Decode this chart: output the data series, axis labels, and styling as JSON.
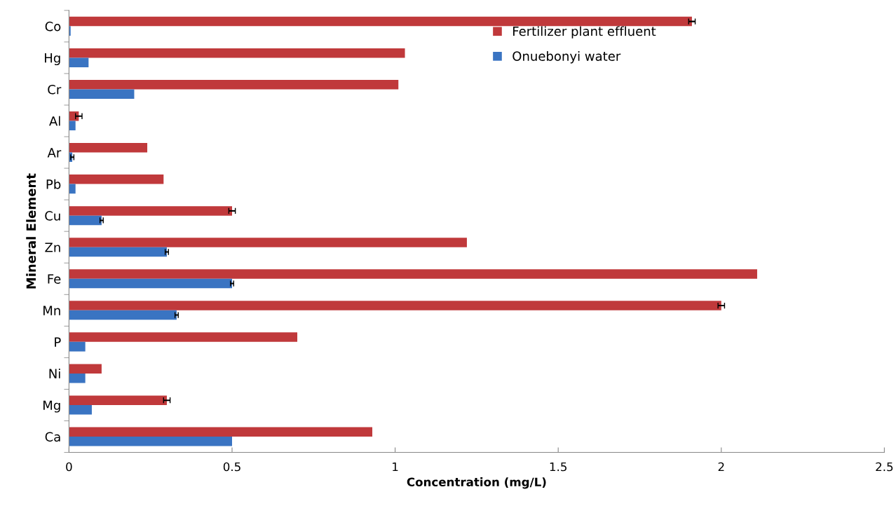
{
  "chart_data": {
    "type": "bar",
    "orientation": "horizontal",
    "xlabel": "Concentration (mg/L)",
    "ylabel": "Mineral Element",
    "categories": [
      "Co",
      "Hg",
      "Cr",
      "Al",
      "Ar",
      "Pb",
      "Cu",
      "Zn",
      "Fe",
      "Mn",
      "P",
      "Ni",
      "Mg",
      "Ca"
    ],
    "series": [
      {
        "name": "Fertilizer plant effluent",
        "color": "#c0393b",
        "values": [
          1.91,
          1.03,
          1.01,
          0.03,
          0.24,
          0.29,
          0.5,
          1.22,
          2.11,
          2.0,
          0.7,
          0.1,
          0.3,
          0.93
        ],
        "errors": [
          0.01,
          null,
          null,
          0.01,
          null,
          null,
          0.01,
          null,
          null,
          0.01,
          null,
          null,
          0.01,
          null
        ]
      },
      {
        "name": "Onuebonyi water",
        "color": "#3a74c2",
        "values": [
          0.005,
          0.06,
          0.2,
          0.02,
          0.01,
          0.02,
          0.1,
          0.3,
          0.5,
          0.33,
          0.05,
          0.05,
          0.07,
          0.5
        ],
        "errors": [
          null,
          null,
          null,
          null,
          0.005,
          null,
          0.005,
          0.005,
          0.005,
          0.005,
          null,
          null,
          null,
          null
        ]
      }
    ],
    "xlim": [
      0,
      2.5
    ],
    "xticks": [
      0,
      0.5,
      1,
      1.5,
      2,
      2.5
    ],
    "grid": false,
    "legend": "top"
  }
}
